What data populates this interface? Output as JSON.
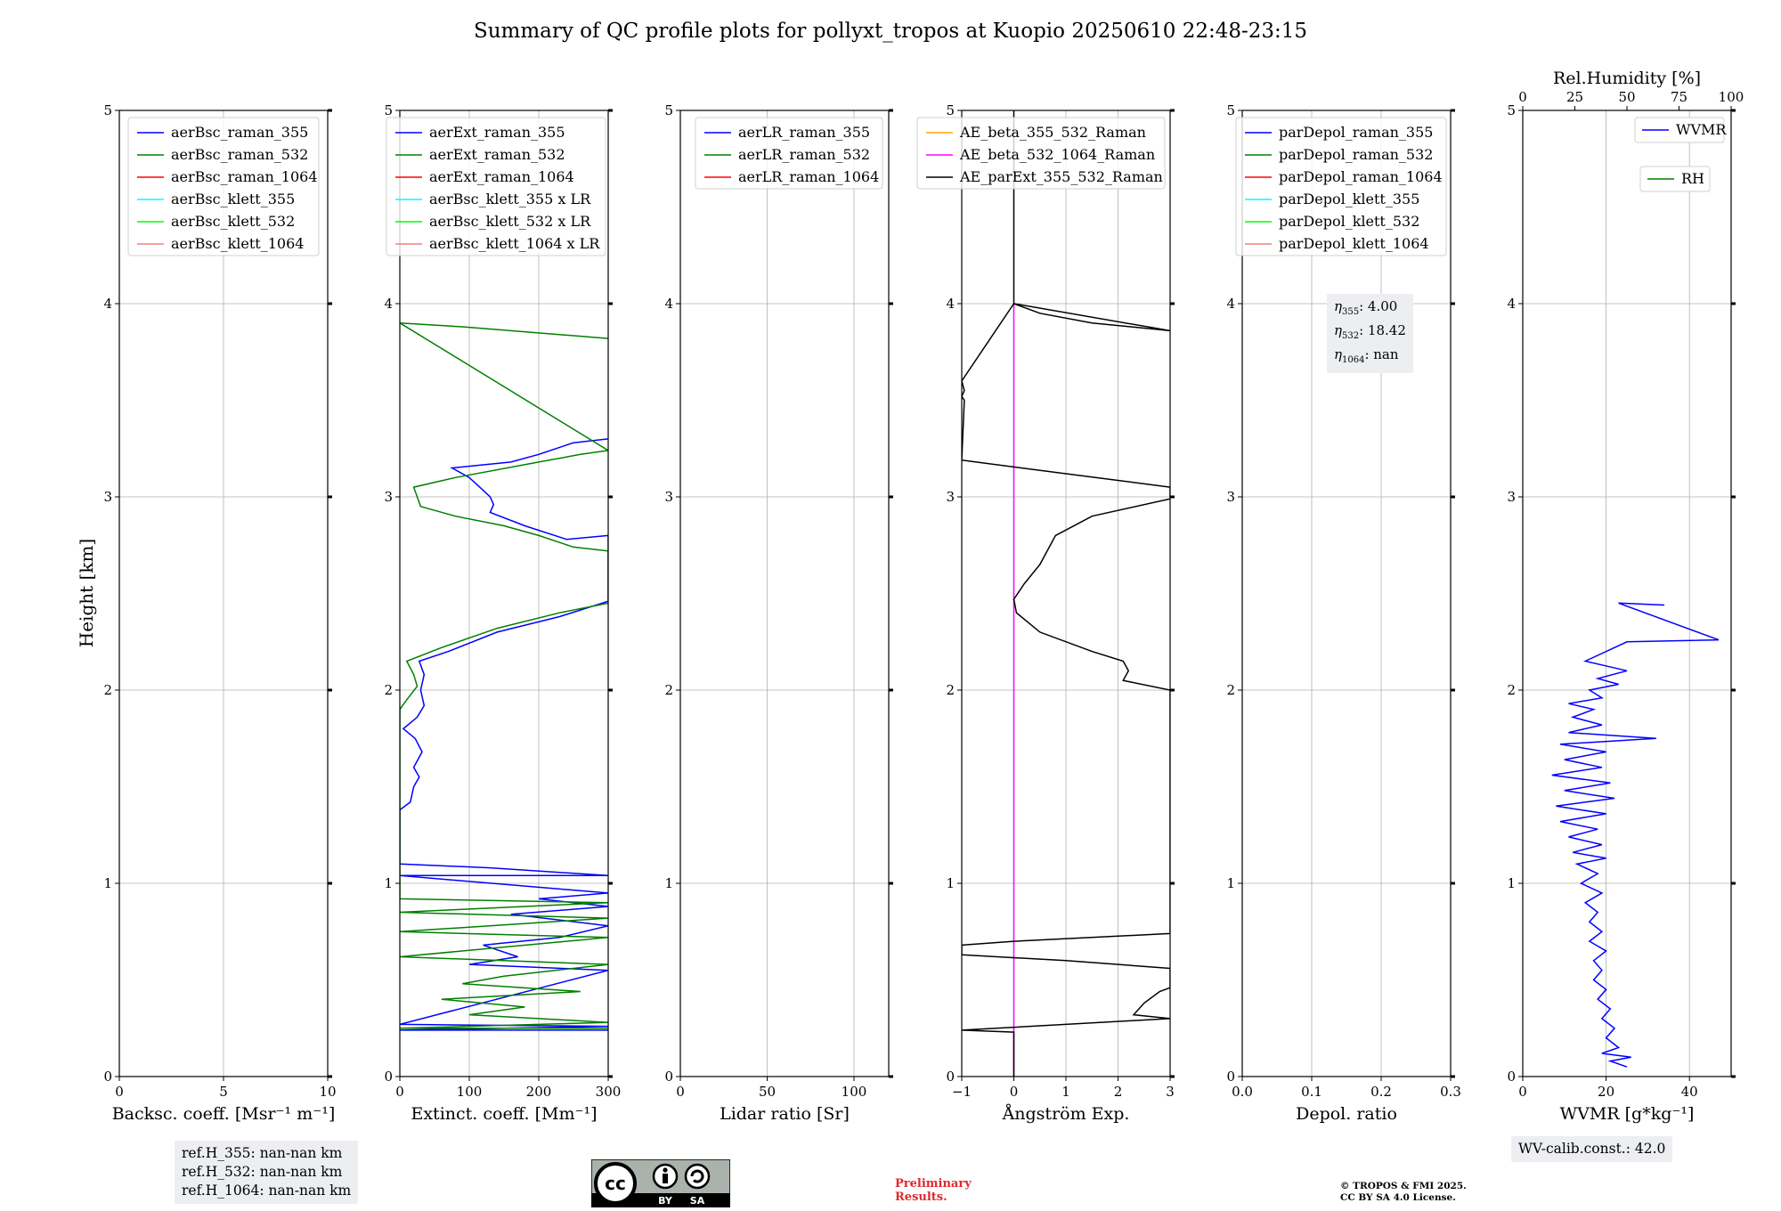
{
  "title": "Summary of QC profile plots for pollyxt_tropos at Kuopio 20250610 22:48-23:15",
  "ylabel": "Height [km]",
  "ref_heights": [
    "ref.H_355: nan-nan km",
    "ref.H_532: nan-nan km",
    "ref.H_1064: nan-nan km"
  ],
  "eta_box": [
    {
      "sym": "η",
      "sub": "355",
      "val": ": 4.00"
    },
    {
      "sym": "η",
      "sub": "532",
      "val": ": 18.42"
    },
    {
      "sym": "η",
      "sub": "1064",
      "val": ": nan"
    }
  ],
  "wv_calib": "WV-calib.const.: 42.0",
  "preliminary": [
    "Preliminary",
    "Results."
  ],
  "copyright": [
    "© TROPOS & FMI 2025.",
    "CC BY SA 4.0 License."
  ],
  "license_badge": {
    "cc": "cc",
    "by": "BY",
    "sa": "SA"
  },
  "colors": {
    "blue": "#0000ff",
    "green": "#008000",
    "red": "#ff0000",
    "cyan": "#00ffff",
    "lime": "#00ff00",
    "salmon": "#f08080",
    "orange": "#ffa500",
    "magenta": "#ff00ff",
    "black": "#000000"
  },
  "chart_data": [
    {
      "type": "line",
      "xlabel": "Backsc. coeff. [Msr⁻¹ m⁻¹]",
      "xlim": [
        0,
        10
      ],
      "xticks": [
        "0",
        "5",
        "10"
      ],
      "ylim": [
        0,
        5
      ],
      "yticks": [
        "0",
        "1",
        "2",
        "3",
        "4",
        "5"
      ],
      "legend": [
        {
          "label": "aerBsc_raman_355",
          "color": "blue"
        },
        {
          "label": "aerBsc_raman_532",
          "color": "green"
        },
        {
          "label": "aerBsc_raman_1064",
          "color": "red"
        },
        {
          "label": "aerBsc_klett_355",
          "color": "cyan"
        },
        {
          "label": "aerBsc_klett_532",
          "color": "lime"
        },
        {
          "label": "aerBsc_klett_1064",
          "color": "salmon"
        }
      ],
      "series": []
    },
    {
      "type": "line",
      "xlabel": "Extinct. coeff. [Mm⁻¹]",
      "xlim": [
        0,
        300
      ],
      "xticks": [
        "0",
        "100",
        "200",
        "300"
      ],
      "ylim": [
        0,
        5
      ],
      "yticks": [
        "0",
        "1",
        "2",
        "3",
        "4",
        "5"
      ],
      "legend": [
        {
          "label": "aerExt_raman_355",
          "color": "blue"
        },
        {
          "label": "aerExt_raman_532",
          "color": "green"
        },
        {
          "label": "aerExt_raman_1064",
          "color": "red"
        },
        {
          "label": "aerBsc_klett_355 x LR",
          "color": "cyan"
        },
        {
          "label": "aerBsc_klett_532 x LR",
          "color": "lime"
        },
        {
          "label": "aerBsc_klett_1064 x LR",
          "color": "salmon"
        }
      ],
      "series": [
        {
          "name": "aerExt_raman_355",
          "color": "blue",
          "points": [
            [
              300,
              0.24
            ],
            [
              0,
              0.24
            ],
            [
              300,
              0.26
            ],
            [
              0,
              0.27
            ],
            [
              300,
              0.55
            ],
            [
              100,
              0.58
            ],
            [
              170,
              0.62
            ],
            [
              120,
              0.68
            ],
            [
              230,
              0.72
            ],
            [
              300,
              0.78
            ],
            [
              160,
              0.84
            ],
            [
              300,
              0.88
            ],
            [
              200,
              0.92
            ],
            [
              300,
              0.95
            ],
            [
              0,
              1.04
            ],
            [
              300,
              1.04
            ],
            [
              130,
              1.08
            ],
            [
              0,
              1.1
            ],
            [
              0,
              1.38
            ],
            [
              15,
              1.42
            ],
            [
              20,
              1.5
            ],
            [
              28,
              1.55
            ],
            [
              20,
              1.6
            ],
            [
              32,
              1.68
            ],
            [
              22,
              1.75
            ],
            [
              5,
              1.8
            ],
            [
              25,
              1.86
            ],
            [
              35,
              1.92
            ],
            [
              30,
              2.0
            ],
            [
              35,
              2.08
            ],
            [
              28,
              2.15
            ],
            [
              70,
              2.2
            ],
            [
              140,
              2.3
            ],
            [
              230,
              2.38
            ],
            [
              300,
              2.46
            ],
            [
              300,
              2.8
            ],
            [
              240,
              2.78
            ],
            [
              180,
              2.85
            ],
            [
              130,
              2.92
            ],
            [
              135,
              2.96
            ],
            [
              130,
              3.0
            ],
            [
              115,
              3.05
            ],
            [
              100,
              3.1
            ],
            [
              75,
              3.15
            ],
            [
              160,
              3.18
            ],
            [
              200,
              3.22
            ],
            [
              250,
              3.28
            ],
            [
              300,
              3.3
            ]
          ]
        },
        {
          "name": "aerExt_raman_532",
          "color": "green",
          "points": [
            [
              300,
              0.25
            ],
            [
              0,
              0.25
            ],
            [
              300,
              0.28
            ],
            [
              100,
              0.32
            ],
            [
              180,
              0.36
            ],
            [
              60,
              0.4
            ],
            [
              260,
              0.44
            ],
            [
              90,
              0.48
            ],
            [
              150,
              0.52
            ],
            [
              300,
              0.58
            ],
            [
              0,
              0.62
            ],
            [
              300,
              0.72
            ],
            [
              0,
              0.75
            ],
            [
              300,
              0.82
            ],
            [
              0,
              0.85
            ],
            [
              300,
              0.9
            ],
            [
              0,
              0.92
            ],
            [
              0,
              1.9
            ],
            [
              10,
              1.95
            ],
            [
              25,
              2.02
            ],
            [
              20,
              2.08
            ],
            [
              10,
              2.15
            ],
            [
              60,
              2.22
            ],
            [
              140,
              2.32
            ],
            [
              230,
              2.4
            ],
            [
              300,
              2.45
            ],
            [
              300,
              2.72
            ],
            [
              250,
              2.74
            ],
            [
              200,
              2.8
            ],
            [
              150,
              2.85
            ],
            [
              80,
              2.9
            ],
            [
              30,
              2.95
            ],
            [
              25,
              3.0
            ],
            [
              20,
              3.05
            ],
            [
              80,
              3.1
            ],
            [
              200,
              3.18
            ],
            [
              260,
              3.22
            ],
            [
              300,
              3.24
            ],
            [
              0,
              3.9
            ],
            [
              90,
              3.88
            ],
            [
              300,
              3.82
            ]
          ]
        }
      ]
    },
    {
      "type": "line",
      "xlabel": "Lidar ratio [Sr]",
      "xlim": [
        0,
        120
      ],
      "xticks": [
        "0",
        "50",
        "100"
      ],
      "ylim": [
        0,
        5
      ],
      "yticks": [
        "0",
        "1",
        "2",
        "3",
        "4",
        "5"
      ],
      "legend": [
        {
          "label": "aerLR_raman_355",
          "color": "blue"
        },
        {
          "label": "aerLR_raman_532",
          "color": "green"
        },
        {
          "label": "aerLR_raman_1064",
          "color": "red"
        }
      ],
      "series": []
    },
    {
      "type": "line",
      "xlabel": "Ångström Exp.",
      "xlim": [
        -1,
        3
      ],
      "xticks": [
        "−1",
        "0",
        "1",
        "2",
        "3"
      ],
      "ylim": [
        0,
        5
      ],
      "yticks": [
        "0",
        "1",
        "2",
        "3",
        "4",
        "5"
      ],
      "legend": [
        {
          "label": "AE_beta_355_532_Raman",
          "color": "orange"
        },
        {
          "label": "AE_beta_532_1064_Raman",
          "color": "magenta"
        },
        {
          "label": "AE_parExt_355_532_Raman",
          "color": "black"
        }
      ],
      "series": [
        {
          "name": "AE_beta_532_1064_Raman",
          "color": "magenta",
          "points": [
            [
              0,
              0
            ],
            [
              0,
              4.0
            ]
          ]
        },
        {
          "name": "AE_parExt_355_532_Raman",
          "color": "black",
          "points": [
            [
              0,
              0
            ],
            [
              0,
              0.23
            ],
            [
              -1,
              0.24
            ],
            [
              3,
              0.3
            ],
            [
              2.3,
              0.32
            ],
            [
              2.5,
              0.38
            ],
            [
              2.8,
              0.44
            ],
            [
              3,
              0.46
            ],
            [
              3,
              0.56
            ],
            [
              1,
              0.6
            ],
            [
              -1,
              0.63
            ],
            [
              -1,
              0.68
            ],
            [
              0,
              0.7
            ],
            [
              3,
              0.74
            ],
            [
              3,
              2.0
            ],
            [
              2.1,
              2.05
            ],
            [
              2.2,
              2.1
            ],
            [
              2.1,
              2.15
            ],
            [
              1.5,
              2.2
            ],
            [
              0.5,
              2.3
            ],
            [
              0.05,
              2.4
            ],
            [
              0,
              2.47
            ],
            [
              0.2,
              2.55
            ],
            [
              0.5,
              2.65
            ],
            [
              0.8,
              2.8
            ],
            [
              1.5,
              2.9
            ],
            [
              3,
              2.99
            ],
            [
              3,
              3.05
            ],
            [
              1,
              3.12
            ],
            [
              -1,
              3.19
            ],
            [
              -0.95,
              3.5
            ],
            [
              -1,
              3.52
            ],
            [
              -0.95,
              3.55
            ],
            [
              -1,
              3.6
            ],
            [
              0,
              4.0
            ],
            [
              0.5,
              3.95
            ],
            [
              1.5,
              3.9
            ],
            [
              3,
              3.86
            ],
            [
              0,
              4.0
            ],
            [
              0,
              5.0
            ]
          ]
        }
      ]
    },
    {
      "type": "line",
      "xlabel": "Depol. ratio",
      "xlim": [
        0,
        0.3
      ],
      "xticks": [
        "0.0",
        "0.1",
        "0.2",
        "0.3"
      ],
      "ylim": [
        0,
        5
      ],
      "yticks": [
        "0",
        "1",
        "2",
        "3",
        "4",
        "5"
      ],
      "legend": [
        {
          "label": "parDepol_raman_355",
          "color": "blue"
        },
        {
          "label": "parDepol_raman_532",
          "color": "green"
        },
        {
          "label": "parDepol_raman_1064",
          "color": "red"
        },
        {
          "label": "parDepol_klett_355",
          "color": "cyan"
        },
        {
          "label": "parDepol_klett_532",
          "color": "lime"
        },
        {
          "label": "parDepol_klett_1064",
          "color": "salmon"
        }
      ],
      "series": []
    },
    {
      "type": "line",
      "xlabel": "WVMR [g*kg⁻¹]",
      "xlim": [
        0,
        50
      ],
      "xticks": [
        "0",
        "20",
        "40"
      ],
      "ylim": [
        0,
        5
      ],
      "yticks": [
        "0",
        "1",
        "2",
        "3",
        "4",
        "5"
      ],
      "top_axis": {
        "label": "Rel.Humidity [%]",
        "lim": [
          0,
          100
        ],
        "ticks": [
          "0",
          "25",
          "50",
          "75",
          "100"
        ]
      },
      "legend": [
        {
          "label": "WVMR",
          "color": "blue"
        },
        {
          "label": "RH",
          "color": "green"
        }
      ],
      "series": [
        {
          "name": "WVMR",
          "color": "blue",
          "points": [
            [
              25,
              0.05
            ],
            [
              21,
              0.08
            ],
            [
              26,
              0.1
            ],
            [
              19,
              0.12
            ],
            [
              23,
              0.15
            ],
            [
              20,
              0.2
            ],
            [
              22,
              0.25
            ],
            [
              19,
              0.3
            ],
            [
              21,
              0.35
            ],
            [
              18,
              0.4
            ],
            [
              20,
              0.45
            ],
            [
              17,
              0.5
            ],
            [
              19,
              0.55
            ],
            [
              17,
              0.6
            ],
            [
              20,
              0.65
            ],
            [
              16,
              0.7
            ],
            [
              19,
              0.75
            ],
            [
              16,
              0.8
            ],
            [
              18,
              0.85
            ],
            [
              15,
              0.9
            ],
            [
              19,
              0.95
            ],
            [
              14,
              1.0
            ],
            [
              18,
              1.05
            ],
            [
              13,
              1.1
            ],
            [
              20,
              1.13
            ],
            [
              12,
              1.16
            ],
            [
              19,
              1.2
            ],
            [
              11,
              1.24
            ],
            [
              18,
              1.28
            ],
            [
              9,
              1.32
            ],
            [
              20,
              1.36
            ],
            [
              8,
              1.4
            ],
            [
              22,
              1.44
            ],
            [
              10,
              1.48
            ],
            [
              21,
              1.52
            ],
            [
              7,
              1.56
            ],
            [
              19,
              1.6
            ],
            [
              10,
              1.64
            ],
            [
              20,
              1.68
            ],
            [
              9,
              1.72
            ],
            [
              32,
              1.75
            ],
            [
              11,
              1.78
            ],
            [
              19,
              1.82
            ],
            [
              12,
              1.86
            ],
            [
              17,
              1.9
            ],
            [
              11,
              1.93
            ],
            [
              19,
              1.96
            ],
            [
              16,
              2.0
            ],
            [
              23,
              2.03
            ],
            [
              18,
              2.06
            ],
            [
              25,
              2.1
            ],
            [
              19,
              2.13
            ],
            [
              15,
              2.15
            ],
            [
              25,
              2.25
            ],
            [
              47,
              2.26
            ],
            [
              23,
              2.45
            ],
            [
              34,
              2.44
            ]
          ]
        }
      ]
    }
  ]
}
